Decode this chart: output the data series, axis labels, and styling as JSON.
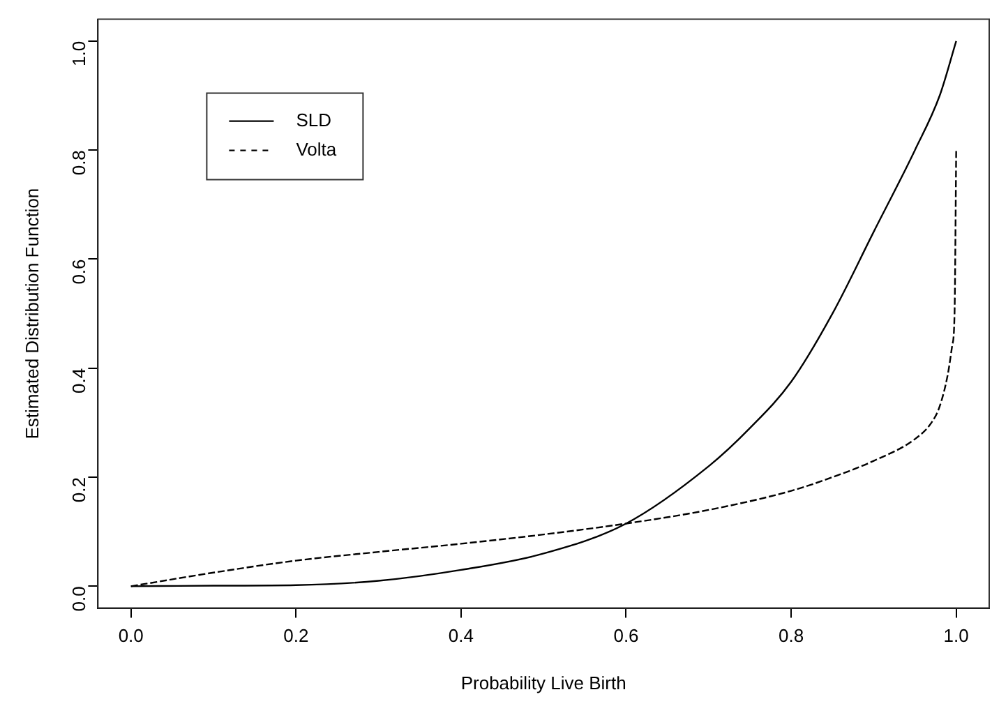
{
  "chart_data": {
    "type": "line",
    "xlabel": "Probability Live Birth",
    "ylabel": "Estimated Distribution Function",
    "xlim": [
      -0.04,
      1.04
    ],
    "ylim": [
      -0.04,
      1.04
    ],
    "xticks": [
      {
        "value": 0,
        "label": "0.0"
      },
      {
        "value": 0.2,
        "label": "0.2"
      },
      {
        "value": 0.4,
        "label": "0.4"
      },
      {
        "value": 0.6,
        "label": "0.6"
      },
      {
        "value": 0.8,
        "label": "0.8"
      },
      {
        "value": 1,
        "label": "1.0"
      }
    ],
    "yticks": [
      {
        "value": 0,
        "label": "0.0"
      },
      {
        "value": 0.2,
        "label": "0.2"
      },
      {
        "value": 0.4,
        "label": "0.4"
      },
      {
        "value": 0.6,
        "label": "0.6"
      },
      {
        "value": 0.8,
        "label": "0.8"
      },
      {
        "value": 1,
        "label": "1.0"
      }
    ],
    "grid": false,
    "legend": "top left",
    "marker": "none",
    "series": [
      {
        "name": "SLD",
        "color": "#000000",
        "line_style": "solid",
        "x": [
          0,
          0.1,
          0.2,
          0.3,
          0.4,
          0.5,
          0.6,
          0.7,
          0.75,
          0.8,
          0.85,
          0.9,
          0.95,
          0.98,
          1
        ],
        "values": [
          0,
          0.001,
          0.002,
          0.01,
          0.03,
          0.06,
          0.115,
          0.22,
          0.29,
          0.375,
          0.5,
          0.65,
          0.8,
          0.9,
          1
        ]
      },
      {
        "name": "Volta",
        "color": "#000000",
        "line_style": "dashed",
        "x": [
          0,
          0.1,
          0.2,
          0.3,
          0.4,
          0.5,
          0.6,
          0.7,
          0.8,
          0.85,
          0.9,
          0.95,
          0.97,
          0.98,
          0.99,
          0.995,
          0.998,
          1
        ],
        "values": [
          0,
          0.025,
          0.047,
          0.063,
          0.078,
          0.095,
          0.115,
          0.14,
          0.175,
          0.2,
          0.23,
          0.27,
          0.3,
          0.33,
          0.39,
          0.44,
          0.5,
          0.8
        ]
      }
    ]
  }
}
